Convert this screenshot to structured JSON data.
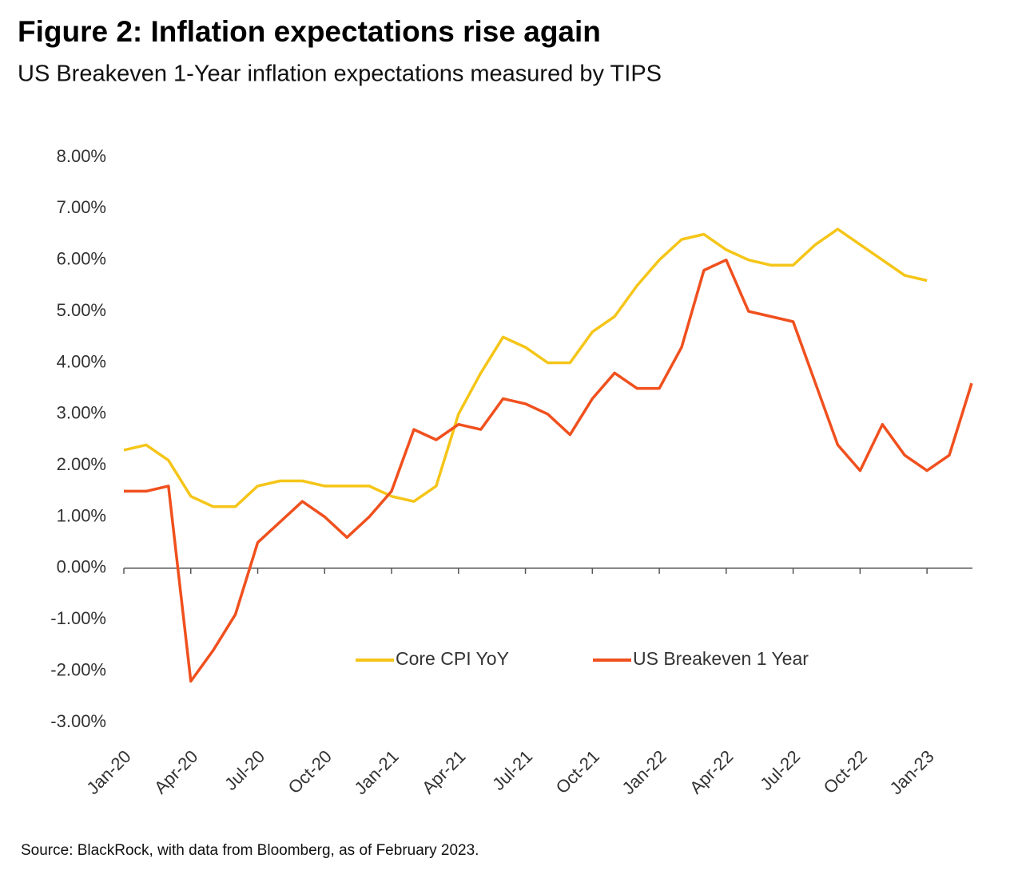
{
  "chart_data": {
    "type": "line",
    "title": "Figure 2: Inflation expectations rise again",
    "subtitle": "US Breakeven 1-Year inflation expectations measured by TIPS",
    "source": "Source: BlackRock, with data from Bloomberg, as of February 2023.",
    "categories": [
      "Jan-20",
      null,
      null,
      "Apr-20",
      null,
      null,
      "Jul-20",
      null,
      null,
      "Oct-20",
      null,
      null,
      "Jan-21",
      null,
      null,
      "Apr-21",
      null,
      null,
      "Jul-21",
      null,
      null,
      "Oct-21",
      null,
      null,
      "Jan-22",
      null,
      null,
      "Apr-22",
      null,
      null,
      "Jul-22",
      null,
      null,
      "Oct-22",
      null,
      null,
      "Jan-23",
      null,
      null
    ],
    "series": [
      {
        "name": "Core CPI YoY",
        "color": "#f5c518",
        "values": [
          2.3,
          2.4,
          2.1,
          1.4,
          1.2,
          1.2,
          1.6,
          1.7,
          1.7,
          1.6,
          1.6,
          1.6,
          1.4,
          1.3,
          1.6,
          3.0,
          3.8,
          4.5,
          4.3,
          4.0,
          4.0,
          4.6,
          4.9,
          5.5,
          6.0,
          6.4,
          6.5,
          6.2,
          6.0,
          5.9,
          5.9,
          6.3,
          6.6,
          6.3,
          6.0,
          5.7,
          5.6,
          null,
          null
        ]
      },
      {
        "name": "US Breakeven 1 Year",
        "color": "#f0501e",
        "values": [
          1.5,
          1.5,
          1.6,
          -2.2,
          -1.6,
          -0.9,
          0.5,
          0.9,
          1.3,
          1.0,
          0.6,
          1.0,
          1.5,
          2.7,
          2.5,
          2.8,
          2.7,
          3.3,
          3.2,
          3.0,
          2.6,
          3.3,
          3.8,
          3.5,
          3.5,
          4.3,
          5.8,
          6.0,
          5.0,
          4.9,
          4.8,
          3.6,
          2.4,
          1.9,
          2.8,
          2.2,
          1.9,
          2.2,
          3.6
        ]
      }
    ],
    "ylim": [
      -3,
      8
    ],
    "yticks": [
      {
        "value": -3,
        "label": "-3.00%"
      },
      {
        "value": -2,
        "label": "-2.00%"
      },
      {
        "value": -1,
        "label": "-1.00%"
      },
      {
        "value": 0,
        "label": "0.00%"
      },
      {
        "value": 1,
        "label": "1.00%"
      },
      {
        "value": 2,
        "label": "2.00%"
      },
      {
        "value": 3,
        "label": "3.00%"
      },
      {
        "value": 4,
        "label": "4.00%"
      },
      {
        "value": 5,
        "label": "5.00%"
      },
      {
        "value": 6,
        "label": "6.00%"
      },
      {
        "value": 7,
        "label": "7.00%"
      },
      {
        "value": 8,
        "label": "8.00%"
      }
    ],
    "grid": false,
    "legend": "bottom"
  }
}
